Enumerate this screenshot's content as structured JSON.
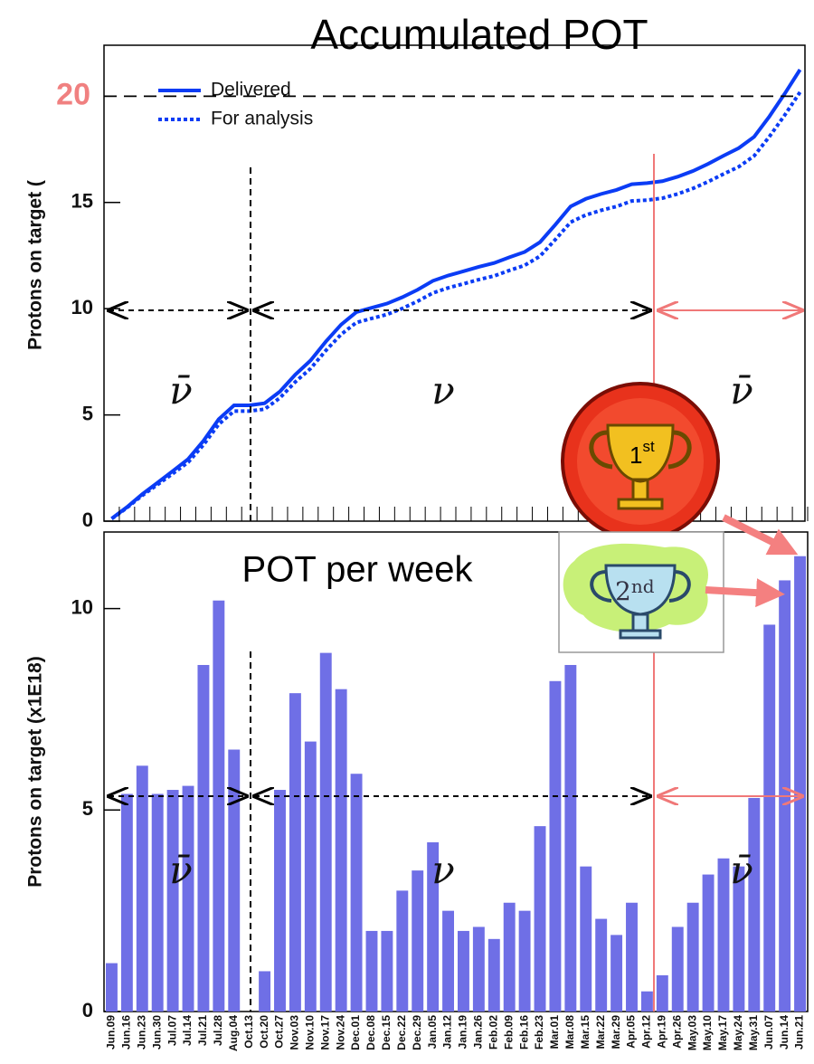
{
  "chart_data": [
    {
      "type": "line",
      "title": "Accumulated POT",
      "ylabel": "Protons on target (",
      "ylim": [
        0,
        22.4
      ],
      "yticks": [
        0,
        5,
        10,
        15
      ],
      "grid": false,
      "series": [
        {
          "name": "Delivered",
          "color": "#0b3cf5",
          "style": "solid",
          "values": [
            0.12,
            0.66,
            1.27,
            1.81,
            2.36,
            2.92,
            3.78,
            4.8,
            5.45,
            5.45,
            5.55,
            6.1,
            6.89,
            7.56,
            8.45,
            9.25,
            9.84,
            10.04,
            10.24,
            10.54,
            10.89,
            11.31,
            11.56,
            11.76,
            11.97,
            12.15,
            12.42,
            12.67,
            13.13,
            13.95,
            14.81,
            15.17,
            15.4,
            15.59,
            15.86,
            15.91,
            16.0,
            16.21,
            16.48,
            16.82,
            17.2,
            17.56,
            18.09,
            19.05,
            20.12,
            21.25
          ]
        },
        {
          "name": "For analysis",
          "color": "#0b3cf5",
          "style": "dotted",
          "values": [
            0.11,
            0.63,
            1.21,
            1.72,
            2.24,
            2.77,
            3.59,
            4.56,
            5.18,
            5.18,
            5.27,
            5.8,
            6.55,
            7.18,
            8.03,
            8.79,
            9.35,
            9.54,
            9.73,
            10.01,
            10.35,
            10.74,
            10.98,
            11.17,
            11.37,
            11.54,
            11.8,
            12.04,
            12.47,
            13.25,
            14.07,
            14.41,
            14.63,
            14.81,
            15.07,
            15.11,
            15.2,
            15.4,
            15.66,
            15.98,
            16.34,
            16.68,
            17.19,
            18.1,
            19.11,
            20.19
          ]
        }
      ],
      "reference": {
        "text": "20",
        "value": 20,
        "color": "#f08080"
      },
      "annotations": [
        "ν̄",
        "ν",
        "ν̄"
      ]
    },
    {
      "type": "bar",
      "title": "POT per week",
      "ylabel": "Protons on target (x1E18)",
      "ylim": [
        0,
        11.9
      ],
      "yticks": [
        0,
        5,
        10
      ],
      "color": "#6f6fe6",
      "categories": [
        "Jun.09",
        "Jun.16",
        "Jun.23",
        "Jun.30",
        "Jul.07",
        "Jul.14",
        "Jul.21",
        "Jul.28",
        "Aug.04",
        "Oct.13",
        "Oct.20",
        "Oct.27",
        "Nov.03",
        "Nov.10",
        "Nov.17",
        "Nov.24",
        "Dec.01",
        "Dec.08",
        "Dec.15",
        "Dec.22",
        "Dec.29",
        "Jan.05",
        "Jan.12",
        "Jan.19",
        "Jan.26",
        "Feb.02",
        "Feb.09",
        "Feb.16",
        "Feb.23",
        "Mar.01",
        "Mar.08",
        "Mar.15",
        "Mar.22",
        "Mar.29",
        "Apr.05",
        "Apr.12",
        "Apr.19",
        "Apr.26",
        "May.03",
        "May.10",
        "May.17",
        "May.24",
        "May.31",
        "Jun.07",
        "Jun.14",
        "Jun.21"
      ],
      "values": [
        1.2,
        5.4,
        6.1,
        5.4,
        5.5,
        5.6,
        8.6,
        10.2,
        6.5,
        0,
        1.0,
        5.5,
        7.9,
        6.7,
        8.9,
        8.0,
        5.9,
        2.0,
        2.0,
        3.0,
        3.5,
        4.2,
        2.5,
        2.0,
        2.1,
        1.8,
        2.7,
        2.5,
        4.6,
        8.2,
        8.6,
        3.6,
        2.3,
        1.9,
        2.7,
        0.5,
        0.9,
        2.1,
        2.7,
        3.4,
        3.8,
        3.6,
        5.3,
        9.6,
        10.7,
        11.3
      ],
      "annotations": [
        "ν̄",
        "ν",
        "ν̄"
      ]
    }
  ],
  "awards": [
    {
      "number": "1",
      "suffix": "st"
    },
    {
      "number": "2",
      "suffix": "nd"
    }
  ]
}
